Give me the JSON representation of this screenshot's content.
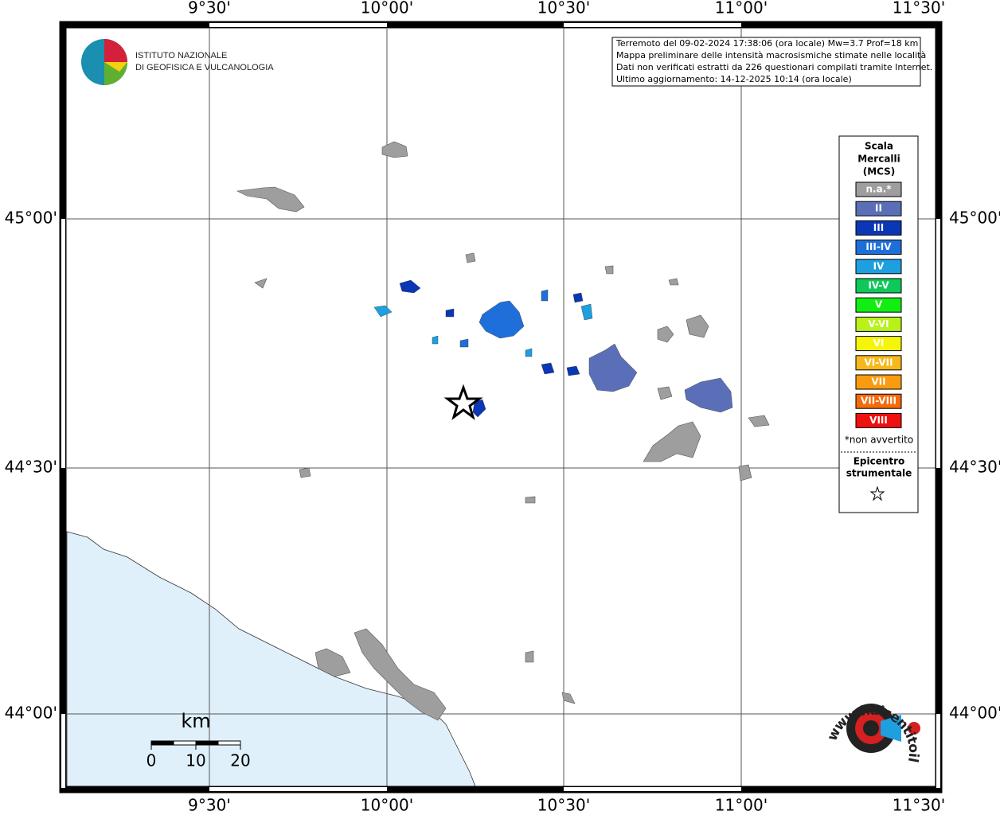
{
  "map": {
    "lon_labels": [
      "9°30'",
      "10°00'",
      "10°30'",
      "11°00'",
      "11°30'"
    ],
    "lat_labels": [
      "45°00'",
      "44°30'",
      "44°00'"
    ],
    "info": [
      "Terremoto del 09-02-2024 17:38:06 (ora locale) Mw=3.7 Prof=18 km",
      "Mappa preliminare delle intensità macrosismiche stimate nelle località",
      "Dati non verificati estratti da 226 questionari compilati tramite Internet.",
      "Ultimo aggiornamento: 14-12-2025 10:14 (ora locale)"
    ],
    "logo": [
      "ISTITUTO NAZIONALE",
      "DI GEOFISICA E VULCANOLOGIA"
    ],
    "legend": {
      "title": [
        "Scala",
        "Mercalli",
        "(MCS)"
      ],
      "items": [
        {
          "label": "n.a.*",
          "color": "#9e9e9e"
        },
        {
          "label": "II",
          "color": "#5b6fb8"
        },
        {
          "label": "III",
          "color": "#0a37b5"
        },
        {
          "label": "III-IV",
          "color": "#1e6fd9"
        },
        {
          "label": "IV",
          "color": "#1d9fe0"
        },
        {
          "label": "IV-V",
          "color": "#0ec85a"
        },
        {
          "label": "V",
          "color": "#12ee12"
        },
        {
          "label": "V-VI",
          "color": "#b8f21a"
        },
        {
          "label": "VI",
          "color": "#f5f50a"
        },
        {
          "label": "VI-VII",
          "color": "#f7b81c"
        },
        {
          "label": "VII",
          "color": "#f99b0e"
        },
        {
          "label": "VII-VIII",
          "color": "#f56a0a"
        },
        {
          "label": "VIII",
          "color": "#f01010"
        }
      ],
      "note": "*non avvertito",
      "epicenter": [
        "Epicentro",
        "strumentale"
      ]
    },
    "scale": {
      "unit": "km",
      "ticks": [
        0,
        10,
        20
      ]
    },
    "site": "www.haisentitoilterremoto.it"
  }
}
